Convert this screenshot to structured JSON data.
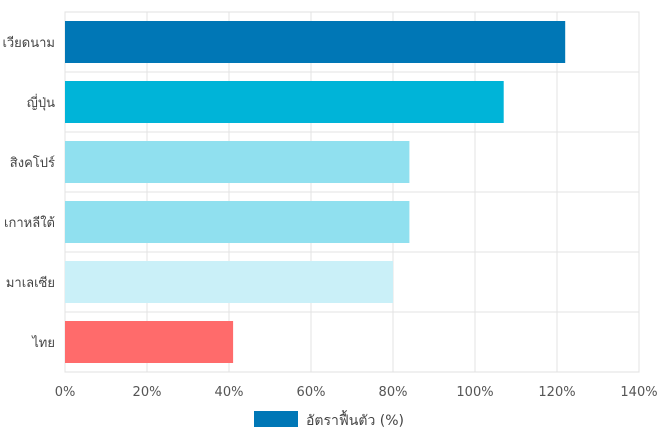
{
  "chart_data": {
    "type": "bar",
    "orientation": "horizontal",
    "categories": [
      "เวียดนาม",
      "ญี่ปุ่น",
      "สิงคโปร์",
      "เกาหลีใต้",
      "มาเลเซีย",
      "ไทย"
    ],
    "series": [
      {
        "name": "อัตราฟื้นตัว (%)",
        "values": [
          122,
          107,
          84,
          84,
          80,
          41
        ],
        "colors": [
          "#0077b6",
          "#00b4d8",
          "#90e0ef",
          "#90e0ef",
          "#caf0f8",
          "#ff6b6b"
        ]
      }
    ],
    "xlim": [
      0,
      140
    ],
    "xticks": [
      "0%",
      "20%",
      "40%",
      "60%",
      "80%",
      "100%",
      "120%",
      "140%"
    ],
    "grid": true,
    "legend_position": "bottom"
  }
}
